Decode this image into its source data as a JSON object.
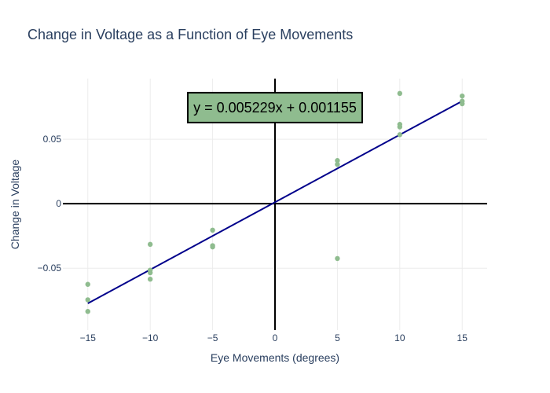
{
  "chart_data": {
    "type": "scatter",
    "title": "Change in Voltage as a Function of Eye Movements",
    "xlabel": "Eye Movements (degrees)",
    "ylabel": "Change in Voltage",
    "xlim": [
      -17,
      17
    ],
    "ylim": [
      -0.098,
      0.097
    ],
    "xticks": [
      -15,
      -10,
      -5,
      0,
      5,
      10,
      15
    ],
    "xtick_labels": [
      "−15",
      "−10",
      "−5",
      "0",
      "5",
      "10",
      "15"
    ],
    "yticks": [
      -0.05,
      0,
      0.05
    ],
    "ytick_labels": [
      "−0.05",
      "0",
      "0.05"
    ],
    "grid": true,
    "legend": false,
    "colors": {
      "points": "#8fbc8f",
      "fit_line": "#00008b",
      "annotation_bg": "#8fbc8f",
      "axis_text": "#2a3f5f"
    },
    "series": [
      {
        "mode": "markers",
        "x": [
          -15,
          -15,
          -15,
          -10,
          -10,
          -10,
          -10,
          -5,
          -5,
          -5,
          5,
          5,
          5,
          10,
          10,
          10,
          10,
          15,
          15,
          15
        ],
        "y": [
          -0.0625,
          -0.0745,
          -0.0835,
          -0.0315,
          -0.0515,
          -0.0535,
          -0.0585,
          -0.0205,
          -0.0325,
          -0.0335,
          0.0335,
          0.0305,
          -0.0425,
          0.0855,
          0.0615,
          0.0595,
          0.0535,
          0.0835,
          0.0795,
          0.0775
        ]
      },
      {
        "mode": "line",
        "x": [
          -15,
          15
        ],
        "y": [
          -0.07728,
          0.07959
        ]
      }
    ],
    "annotation": {
      "text": "y = 0.005229x + 0.001155",
      "x": 0,
      "y": 0.0745
    }
  }
}
